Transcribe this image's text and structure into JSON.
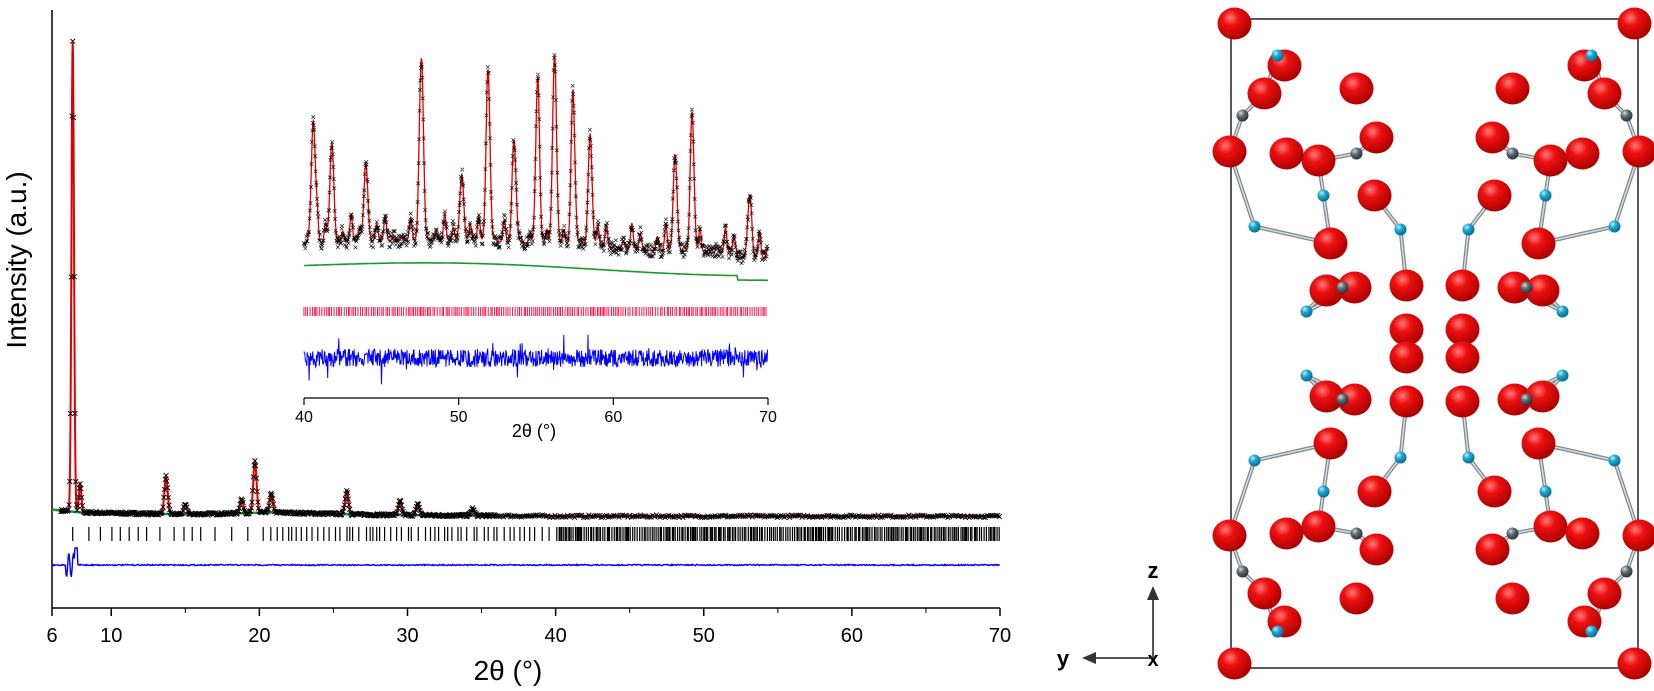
{
  "chart_data": [
    {
      "type": "line",
      "subtype": "rietveld-refinement",
      "title": "",
      "xlabel": "2θ (°)",
      "ylabel": "Intensity (a.u.)",
      "xlim": [
        6,
        70
      ],
      "x_ticks": [
        "6",
        "10",
        "20",
        "30",
        "40",
        "50",
        "60",
        "70"
      ],
      "y_ticks_shown": false,
      "grid": false,
      "series": [
        {
          "color": "#000000",
          "marker": "x",
          "description": "observed",
          "peaks": [
            {
              "x": 7.4,
              "y": 100
            },
            {
              "x": 7.9,
              "y": 6
            },
            {
              "x": 13.7,
              "y": 8
            },
            {
              "x": 15.0,
              "y": 2
            },
            {
              "x": 18.8,
              "y": 3
            },
            {
              "x": 19.7,
              "y": 11
            },
            {
              "x": 20.8,
              "y": 4
            },
            {
              "x": 25.9,
              "y": 5
            },
            {
              "x": 29.5,
              "y": 3
            },
            {
              "x": 30.7,
              "y": 2.5
            },
            {
              "x": 34.4,
              "y": 1.5
            }
          ]
        },
        {
          "color": "#e00000",
          "style": "line",
          "description": "calculated"
        },
        {
          "color": "#1a9a2a",
          "style": "line",
          "description": "background",
          "points": [
            [
              6,
              2.2
            ],
            [
              8,
              1.6
            ],
            [
              15,
              1.2
            ],
            [
              21,
              1.6
            ],
            [
              28,
              1.1
            ],
            [
              40,
              0.8
            ],
            [
              70,
              0.8
            ]
          ]
        },
        {
          "color": "#000000",
          "style": "tick",
          "description": "bragg-positions"
        },
        {
          "color": "#0000ff",
          "style": "line",
          "description": "difference"
        }
      ]
    },
    {
      "type": "line",
      "subtype": "inset-zoom",
      "title": "",
      "xlabel": "2θ (°)",
      "ylabel": "",
      "xlim": [
        40,
        70
      ],
      "x_ticks": [
        "40",
        "50",
        "60",
        "70"
      ],
      "grid": false,
      "peaks": [
        {
          "x": 40.6,
          "y": 0.55
        },
        {
          "x": 41.8,
          "y": 0.45
        },
        {
          "x": 44.0,
          "y": 0.35
        },
        {
          "x": 47.6,
          "y": 0.8
        },
        {
          "x": 50.2,
          "y": 0.3
        },
        {
          "x": 51.9,
          "y": 0.75
        },
        {
          "x": 53.6,
          "y": 0.4
        },
        {
          "x": 55.1,
          "y": 0.65
        },
        {
          "x": 56.2,
          "y": 0.85
        },
        {
          "x": 57.4,
          "y": 0.6
        },
        {
          "x": 58.5,
          "y": 0.5
        },
        {
          "x": 64.0,
          "y": 0.4
        },
        {
          "x": 65.1,
          "y": 0.55
        },
        {
          "x": 68.8,
          "y": 0.25
        }
      ],
      "series_colors": {
        "observed": "#000000",
        "calculated": "#e00000",
        "background": "#1a9a2a",
        "bragg": "#ff0040",
        "difference": "#0000ff"
      }
    }
  ],
  "structure": {
    "description_hidden": "",
    "axis_labels": {
      "vertical": "z",
      "horizontal": "y",
      "out_of_plane": "x"
    },
    "colors": {
      "oxygen": "#e00000",
      "cation_a": "#1fa9d6",
      "cation_b": "#5a6a70",
      "bond": "#9aa3a8",
      "cell": "#000000"
    }
  }
}
